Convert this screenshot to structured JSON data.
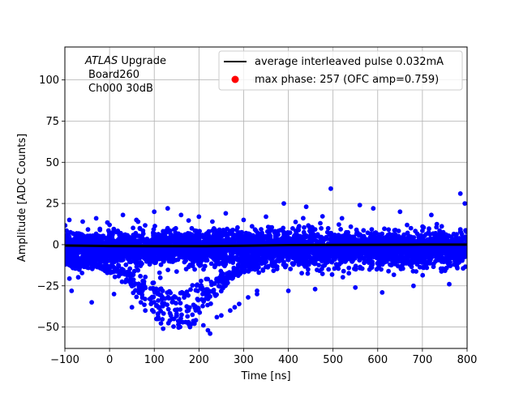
{
  "chart_data": {
    "type": "scatter",
    "xlabel": "Time [ns]",
    "ylabel": "Amplitude [ADC Counts]",
    "xlim": [
      -100,
      800
    ],
    "ylim": [
      -63,
      120
    ],
    "xticks": [
      -100,
      0,
      100,
      200,
      300,
      400,
      500,
      600,
      700,
      800
    ],
    "yticks": [
      -50,
      -25,
      0,
      25,
      50,
      75,
      100
    ],
    "grid": true,
    "legend_position": "top-right",
    "annotation": {
      "line1_italic": "ATLAS",
      "line1_rest": " Upgrade",
      "line2": "Board260",
      "line3": "Ch000 30dB"
    },
    "series": [
      {
        "name": "average interleaved pulse 0.032mA",
        "kind": "line",
        "color": "#000000",
        "x": [
          -100,
          0,
          100,
          200,
          300,
          400,
          500,
          600,
          700,
          800
        ],
        "y": [
          -0.5,
          -0.8,
          -0.9,
          -0.9,
          -0.6,
          -0.3,
          -0.2,
          -0.1,
          0.0,
          0.0
        ]
      },
      {
        "name": "max phase: 257 (OFC amp=0.759)",
        "kind": "marker",
        "color": "#ff0000",
        "x": [],
        "y": []
      },
      {
        "name": "",
        "kind": "scatter",
        "color": "#0000ff",
        "note_band_y": [
          -15,
          12
        ],
        "x": [
          -90,
          -60,
          -30,
          0,
          30,
          60,
          100,
          130,
          160,
          200,
          230,
          260,
          300,
          350,
          390,
          440,
          495,
          520,
          560,
          590,
          650,
          720,
          785,
          795,
          -85,
          -40,
          10,
          50,
          80,
          110,
          150,
          190,
          240,
          280,
          330,
          400,
          460,
          550,
          610,
          680,
          760,
          70,
          90,
          120,
          140,
          170,
          180,
          210,
          220,
          225,
          250,
          270,
          290,
          310,
          330
        ],
        "y": [
          15,
          14,
          16,
          12,
          18,
          15,
          20,
          22,
          18,
          17,
          14,
          19,
          15,
          17,
          25,
          23,
          34,
          16,
          24,
          22,
          20,
          18,
          31,
          25,
          -28,
          -35,
          -30,
          -38,
          -40,
          -45,
          -42,
          -48,
          -44,
          -38,
          -30,
          -28,
          -27,
          -26,
          -29,
          -25,
          -24,
          -35,
          -33,
          -51,
          -45,
          -47,
          -50,
          -49,
          -52,
          -54,
          -43,
          -40,
          -36,
          -32,
          -28
        ]
      }
    ]
  }
}
